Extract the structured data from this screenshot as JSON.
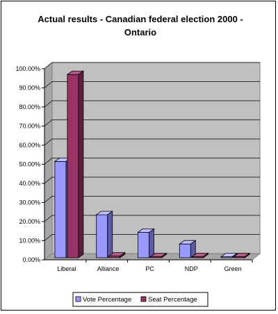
{
  "chart_data": {
    "type": "bar",
    "title_lines": [
      "Actual results - Canadian federal election 2000 -",
      "Ontario"
    ],
    "categories": [
      "Liberal",
      "Alliance",
      "PC",
      "NDP",
      "Green"
    ],
    "series": [
      {
        "name": "Vote Percentage",
        "values": [
          51.5,
          23.6,
          14.4,
          8.3,
          0.9
        ]
      },
      {
        "name": "Seat Percentage",
        "values": [
          97.0,
          2.0,
          0.0,
          1.0,
          0.0
        ]
      }
    ],
    "yticks": [
      "0.00%",
      "10.00%",
      "20.00%",
      "30.00%",
      "40.00%",
      "50.00%",
      "60.00%",
      "70.00%",
      "80.00%",
      "90.00%",
      "100.00%"
    ],
    "ylim": [
      0,
      100
    ],
    "grid": true,
    "legend_position": "bottom",
    "colors": {
      "vote_front": "#9999ff",
      "vote_side": "#5a5aa8",
      "vote_top": "#c0c0ff",
      "seat_front": "#993366",
      "seat_side": "#5e1f3e",
      "seat_top": "#b65a88",
      "wall": "#c0c0c0",
      "floor": "#a6a6a6",
      "gridline": "#000000"
    }
  }
}
